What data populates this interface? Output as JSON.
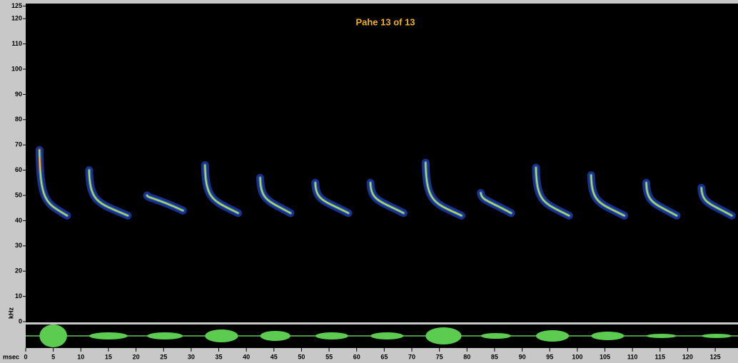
{
  "title": "Pahe  13 of 13",
  "y_axis": {
    "label": "kHz",
    "lim": [
      0,
      125
    ],
    "ticks": [
      0,
      10,
      20,
      30,
      40,
      50,
      60,
      70,
      80,
      90,
      100,
      110,
      120,
      125
    ]
  },
  "x_axis": {
    "label": "msec",
    "lim": [
      0,
      129
    ],
    "ticks": [
      0,
      5,
      10,
      15,
      20,
      25,
      30,
      35,
      40,
      45,
      50,
      55,
      60,
      65,
      70,
      75,
      80,
      85,
      90,
      95,
      100,
      105,
      110,
      115,
      120,
      125
    ]
  },
  "calls": [
    {
      "start": 2.5,
      "end": 7.5,
      "f_start": 68,
      "f_end": 42,
      "amp": 16
    },
    {
      "start": 11.5,
      "end": 18.5,
      "f_start": 60,
      "f_end": 42,
      "amp": 5
    },
    {
      "start": 22,
      "end": 28.5,
      "f_start": 50,
      "f_end": 44,
      "amp": 5
    },
    {
      "start": 32.5,
      "end": 38.5,
      "f_start": 62,
      "f_end": 43,
      "amp": 9
    },
    {
      "start": 42.5,
      "end": 48,
      "f_start": 57,
      "f_end": 43,
      "amp": 7
    },
    {
      "start": 52.5,
      "end": 58.5,
      "f_start": 55,
      "f_end": 43,
      "amp": 5
    },
    {
      "start": 62.5,
      "end": 68.5,
      "f_start": 55,
      "f_end": 43,
      "amp": 5
    },
    {
      "start": 72.5,
      "end": 79,
      "f_start": 63,
      "f_end": 42,
      "amp": 12
    },
    {
      "start": 82.5,
      "end": 88,
      "f_start": 51,
      "f_end": 43,
      "amp": 4
    },
    {
      "start": 92.5,
      "end": 98.5,
      "f_start": 61,
      "f_end": 42,
      "amp": 8
    },
    {
      "start": 102.5,
      "end": 108.5,
      "f_start": 58,
      "f_end": 42,
      "amp": 6
    },
    {
      "start": 112.5,
      "end": 118,
      "f_start": 55,
      "f_end": 42,
      "amp": 3
    },
    {
      "start": 122.5,
      "end": 128,
      "f_start": 53,
      "f_end": 42,
      "amp": 3
    }
  ]
}
